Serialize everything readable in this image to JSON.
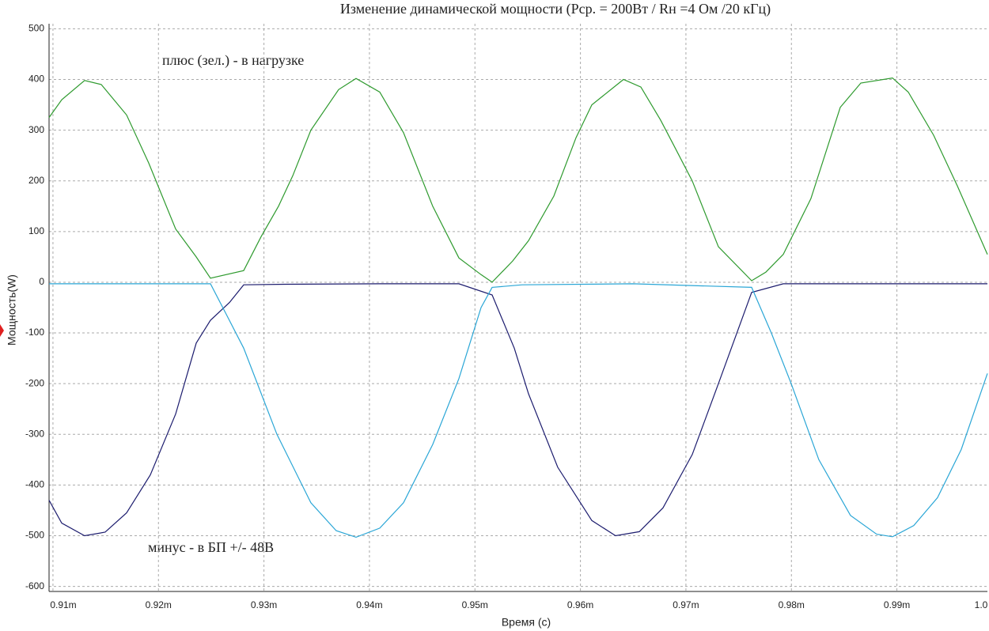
{
  "chart_data": {
    "type": "line",
    "title": "Изменение динамической мощности (Рср. = 200Вт / Rн =4 Ом /20 кГц)",
    "x_label": "Время (с)",
    "y_label": "Мощность(W)",
    "annotations": [
      "плюс (зел.) - в нагрузке",
      "минус - в БП +/- 48В"
    ],
    "xlim": [
      0.90963,
      0.99858
    ],
    "ylim": [
      -610,
      510
    ],
    "xticks": [
      {
        "value": 0.91,
        "label": "0.91m"
      },
      {
        "value": 0.92,
        "label": "0.92m"
      },
      {
        "value": 0.93,
        "label": "0.93m"
      },
      {
        "value": 0.94,
        "label": "0.94m"
      },
      {
        "value": 0.95,
        "label": "0.95m"
      },
      {
        "value": 0.96,
        "label": "0.96m"
      },
      {
        "value": 0.97,
        "label": "0.97m"
      },
      {
        "value": 0.98,
        "label": "0.98m"
      },
      {
        "value": 0.99,
        "label": "0.99m"
      },
      {
        "value": 1.0,
        "label": "1.0"
      }
    ],
    "yticks": [
      500,
      400,
      300,
      200,
      100,
      0,
      -100,
      -200,
      -300,
      -400,
      -500,
      -600
    ],
    "grid": true,
    "series": [
      {
        "color": "#2e9a2e",
        "x": [
          0.90963,
          0.91083,
          0.913,
          0.91458,
          0.91698,
          0.91908,
          0.92163,
          0.92358,
          0.92493,
          0.92808,
          0.92973,
          0.93138,
          0.93273,
          0.93445,
          0.93708,
          0.93873,
          0.94098,
          0.94323,
          0.946,
          0.94848,
          0.95058,
          0.95163,
          0.95358,
          0.95508,
          0.95748,
          0.95958,
          0.96108,
          0.96408,
          0.96573,
          0.9676,
          0.96873,
          0.9706,
          0.97308,
          0.97623,
          0.97758,
          0.97923,
          0.98185,
          0.98463,
          0.98658,
          0.98958,
          0.99108,
          0.99348,
          0.99573,
          0.99858
        ],
        "values": [
          325,
          360,
          398,
          390,
          330,
          235,
          105,
          50,
          8,
          23,
          90,
          150,
          210,
          300,
          380,
          402,
          375,
          295,
          150,
          48,
          15,
          0,
          42,
          82,
          170,
          285,
          350,
          400,
          385,
          320,
          275,
          200,
          70,
          3,
          20,
          55,
          165,
          345,
          393,
          403,
          375,
          290,
          190,
          55
        ]
      },
      {
        "color": "#1c1c6e",
        "x": [
          0.90963,
          0.91083,
          0.913,
          0.91495,
          0.91698,
          0.91923,
          0.92163,
          0.92358,
          0.92493,
          0.92673,
          0.92808,
          0.93198,
          0.94098,
          0.94848,
          0.95163,
          0.95373,
          0.95508,
          0.95785,
          0.96108,
          0.96333,
          0.96558,
          0.96783,
          0.9706,
          0.97308,
          0.97623,
          0.97923,
          0.98748,
          0.99858
        ],
        "values": [
          -430,
          -475,
          -500,
          -493,
          -455,
          -380,
          -260,
          -120,
          -75,
          -40,
          -5,
          -4,
          -3,
          -3,
          -25,
          -130,
          -220,
          -365,
          -470,
          -500,
          -492,
          -445,
          -340,
          -200,
          -20,
          -3,
          -3,
          -3
        ]
      },
      {
        "color": "#2aa6d6",
        "x": [
          0.90963,
          0.92493,
          0.92635,
          0.92808,
          0.93123,
          0.93445,
          0.93685,
          0.93873,
          0.94098,
          0.94323,
          0.946,
          0.94848,
          0.95058,
          0.95163,
          0.95448,
          0.96498,
          0.97623,
          0.9781,
          0.97998,
          0.9826,
          0.9856,
          0.98808,
          0.98958,
          0.9916,
          0.99385,
          0.9961,
          0.99858
        ],
        "values": [
          -3,
          -3,
          -60,
          -130,
          -300,
          -435,
          -490,
          -503,
          -485,
          -435,
          -320,
          -190,
          -50,
          -10,
          -5,
          -3,
          -10,
          -100,
          -200,
          -350,
          -460,
          -497,
          -502,
          -480,
          -425,
          -330,
          -180
        ]
      }
    ]
  }
}
